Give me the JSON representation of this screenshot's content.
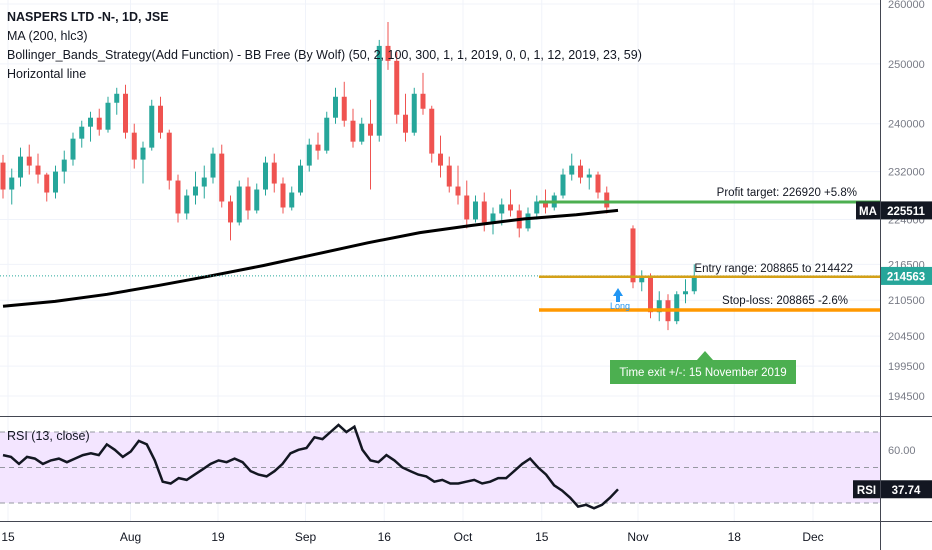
{
  "legend": {
    "symbol": "NASPERS LTD -N-, 1D, JSE",
    "ma": "MA (200, hlc3)",
    "strategy": "Bollinger_Bands_Strategy(Add Function) - BB Free (By Wolf) (50, 2, 100, 300, 1, 1, 2019, 0, 0, 1, 12, 2019, 23, 59)",
    "hline": "Horizontal line",
    "rsi": "RSI (13, close)"
  },
  "annotations": {
    "profit_target": "Profit target: 226920 +5.8%",
    "entry_range": "Entry range: 208865 to 214422",
    "stop_loss": "Stop-loss: 208865 -2.6%",
    "time_exit": "Time exit +/-: 15 November 2019",
    "long_label": "Long"
  },
  "badges": {
    "ma_label": "MA",
    "ma_value": "225511",
    "price_value": "214563",
    "rsi_label": "RSI",
    "rsi_value": "37.74"
  },
  "colors": {
    "up": "#26a69a",
    "down": "#ef5350",
    "ma": "#000000",
    "profit": "#4caf50",
    "entry": "#d4a017",
    "stop": "#ff9800",
    "price_line": "#26a69a",
    "rsi_line": "#131722",
    "rsi_band": "#f3e5ff",
    "long": "#2196f3"
  },
  "chart_data": [
    {
      "type": "candlestick",
      "title": "NASPERS LTD -N-, 1D, JSE",
      "price_ticks": [
        260000,
        250000,
        240000,
        232000,
        224000,
        216500,
        210500,
        204500,
        199500,
        194500
      ],
      "price_tick_labels": [
        "260000",
        "250000",
        "240000",
        "232000",
        "224000",
        "216500",
        "210500",
        "204500",
        "199500",
        "194500"
      ],
      "time_labels": [
        "15",
        "Aug",
        "19",
        "Sep",
        "16",
        "Oct",
        "15",
        "Nov",
        "18",
        "Dec"
      ],
      "time_label_index": [
        0,
        14,
        24,
        34,
        43,
        52,
        61,
        72,
        83,
        92
      ],
      "date_range": [
        "2019-07-15",
        "2019-12-06"
      ],
      "last_price": 214563,
      "ma_last": 225511,
      "profit_target": 226920,
      "entry_range": [
        208865,
        214422
      ],
      "stop_loss": 208865,
      "time_exit": "15 November 2019",
      "candles": [
        [
          233500,
          234800,
          227500,
          229000
        ],
        [
          229000,
          232500,
          226500,
          231000
        ],
        [
          231000,
          236000,
          229500,
          234500
        ],
        [
          234500,
          236500,
          231500,
          233000
        ],
        [
          233000,
          235000,
          230000,
          231500
        ],
        [
          231500,
          231800,
          227000,
          228500
        ],
        [
          228500,
          233000,
          227500,
          232000
        ],
        [
          232000,
          235500,
          230000,
          234000
        ],
        [
          234000,
          238500,
          233000,
          237500
        ],
        [
          237500,
          240500,
          236000,
          239500
        ],
        [
          239500,
          242000,
          237000,
          241000
        ],
        [
          241000,
          242500,
          238000,
          239000
        ],
        [
          239000,
          244500,
          238500,
          243500
        ],
        [
          243500,
          246000,
          241500,
          245000
        ],
        [
          245000,
          246500,
          237500,
          238500
        ],
        [
          238500,
          240000,
          232500,
          234000
        ],
        [
          234000,
          237000,
          230000,
          236000
        ],
        [
          236000,
          244000,
          235500,
          243000
        ],
        [
          243000,
          244500,
          237500,
          238500
        ],
        [
          238500,
          239000,
          229000,
          230500
        ],
        [
          230500,
          231500,
          223500,
          225000
        ],
        [
          225000,
          229000,
          224000,
          228000
        ],
        [
          228000,
          232000,
          226500,
          229500
        ],
        [
          229500,
          233000,
          227500,
          231000
        ],
        [
          231000,
          236000,
          230000,
          235000
        ],
        [
          235000,
          236500,
          226000,
          227000
        ],
        [
          227000,
          228000,
          220500,
          223500
        ],
        [
          223500,
          230500,
          223000,
          229500
        ],
        [
          229500,
          231000,
          224000,
          225500
        ],
        [
          225500,
          230000,
          225000,
          229000
        ],
        [
          229000,
          234500,
          228000,
          233500
        ],
        [
          233500,
          235000,
          228500,
          230000
        ],
        [
          230000,
          231000,
          225000,
          226000
        ],
        [
          226000,
          229500,
          225500,
          228500
        ],
        [
          228500,
          234000,
          228000,
          233000
        ],
        [
          233000,
          237500,
          232000,
          236500
        ],
        [
          236500,
          238500,
          234000,
          235500
        ],
        [
          235500,
          242000,
          235000,
          241000
        ],
        [
          241000,
          246000,
          240000,
          244500
        ],
        [
          244500,
          247000,
          239500,
          240500
        ],
        [
          240500,
          242500,
          236000,
          237000
        ],
        [
          237000,
          241000,
          236500,
          240000
        ],
        [
          240000,
          244000,
          229000,
          238000
        ],
        [
          238000,
          254000,
          237000,
          253000
        ],
        [
          253000,
          257000,
          249000,
          250500
        ],
        [
          250500,
          252000,
          240000,
          241500
        ],
        [
          241500,
          245000,
          237000,
          238500
        ],
        [
          238500,
          246000,
          238000,
          245000
        ],
        [
          245000,
          248500,
          241500,
          242500
        ],
        [
          242500,
          243000,
          233500,
          235000
        ],
        [
          235000,
          238000,
          231000,
          233000
        ],
        [
          233000,
          234500,
          228500,
          229500
        ],
        [
          229500,
          233000,
          226500,
          228000
        ],
        [
          228000,
          230500,
          222500,
          224000
        ],
        [
          224000,
          228000,
          223500,
          227000
        ],
        [
          227000,
          228500,
          222000,
          223500
        ],
        [
          223500,
          226000,
          221500,
          225000
        ],
        [
          225000,
          227500,
          223000,
          226500
        ],
        [
          226500,
          229000,
          224500,
          225500
        ],
        [
          225500,
          226500,
          221000,
          222500
        ],
        [
          222500,
          226000,
          222000,
          225000
        ],
        [
          225000,
          228000,
          224000,
          227000
        ],
        [
          227000,
          229000,
          225000,
          226000
        ],
        [
          226000,
          228500,
          225500,
          228000
        ],
        [
          228000,
          232500,
          227500,
          231500
        ],
        [
          231500,
          235000,
          230500,
          233000
        ],
        [
          233000,
          234000,
          230000,
          231000
        ],
        [
          231000,
          232500,
          229000,
          231500
        ],
        [
          231500,
          232000,
          227500,
          228500
        ],
        [
          228500,
          229500,
          225000,
          226000
        ],
        [
          222500,
          223000,
          212500,
          213500
        ],
        [
          213500,
          215500,
          212000,
          214500
        ],
        [
          214500,
          215000,
          207500,
          208500
        ],
        [
          208500,
          212000,
          207000,
          210500
        ],
        [
          210500,
          211500,
          205500,
          207000
        ],
        [
          207000,
          212000,
          206500,
          211500
        ],
        [
          211500,
          214000,
          210000,
          212000
        ],
        [
          212000,
          216500,
          211500,
          214563
        ]
      ],
      "ma_series": [
        [
          0,
          209500
        ],
        [
          10,
          210300
        ],
        [
          20,
          211500
        ],
        [
          30,
          213000
        ],
        [
          40,
          214600
        ],
        [
          50,
          216300
        ],
        [
          60,
          218200
        ],
        [
          70,
          220100
        ],
        [
          80,
          221800
        ],
        [
          90,
          223000
        ],
        [
          100,
          224100
        ],
        [
          110,
          224800
        ],
        [
          118,
          225511
        ]
      ]
    },
    {
      "type": "line",
      "title": "RSI (13, close)",
      "y_ticks": [
        60
      ],
      "y_tick_labels": [
        "60.00"
      ],
      "band": [
        30,
        70
      ],
      "ylim": [
        25,
        75
      ],
      "values": [
        57,
        56,
        52,
        56,
        55,
        52,
        54,
        55,
        53,
        55,
        57,
        58,
        57,
        63,
        60,
        56,
        59,
        65,
        63,
        54,
        42,
        41,
        44,
        43,
        46,
        49,
        52,
        54,
        53,
        55,
        53,
        48,
        46,
        45,
        48,
        52,
        58,
        60,
        61,
        67,
        66,
        70,
        74,
        70,
        73,
        60,
        54,
        53,
        57,
        54,
        50,
        48,
        46,
        45,
        42,
        43,
        41,
        41,
        42,
        43,
        41,
        42,
        44,
        44,
        48,
        52,
        55,
        50,
        46,
        40,
        37,
        33,
        28,
        29,
        27,
        29,
        33,
        37.74
      ]
    }
  ]
}
